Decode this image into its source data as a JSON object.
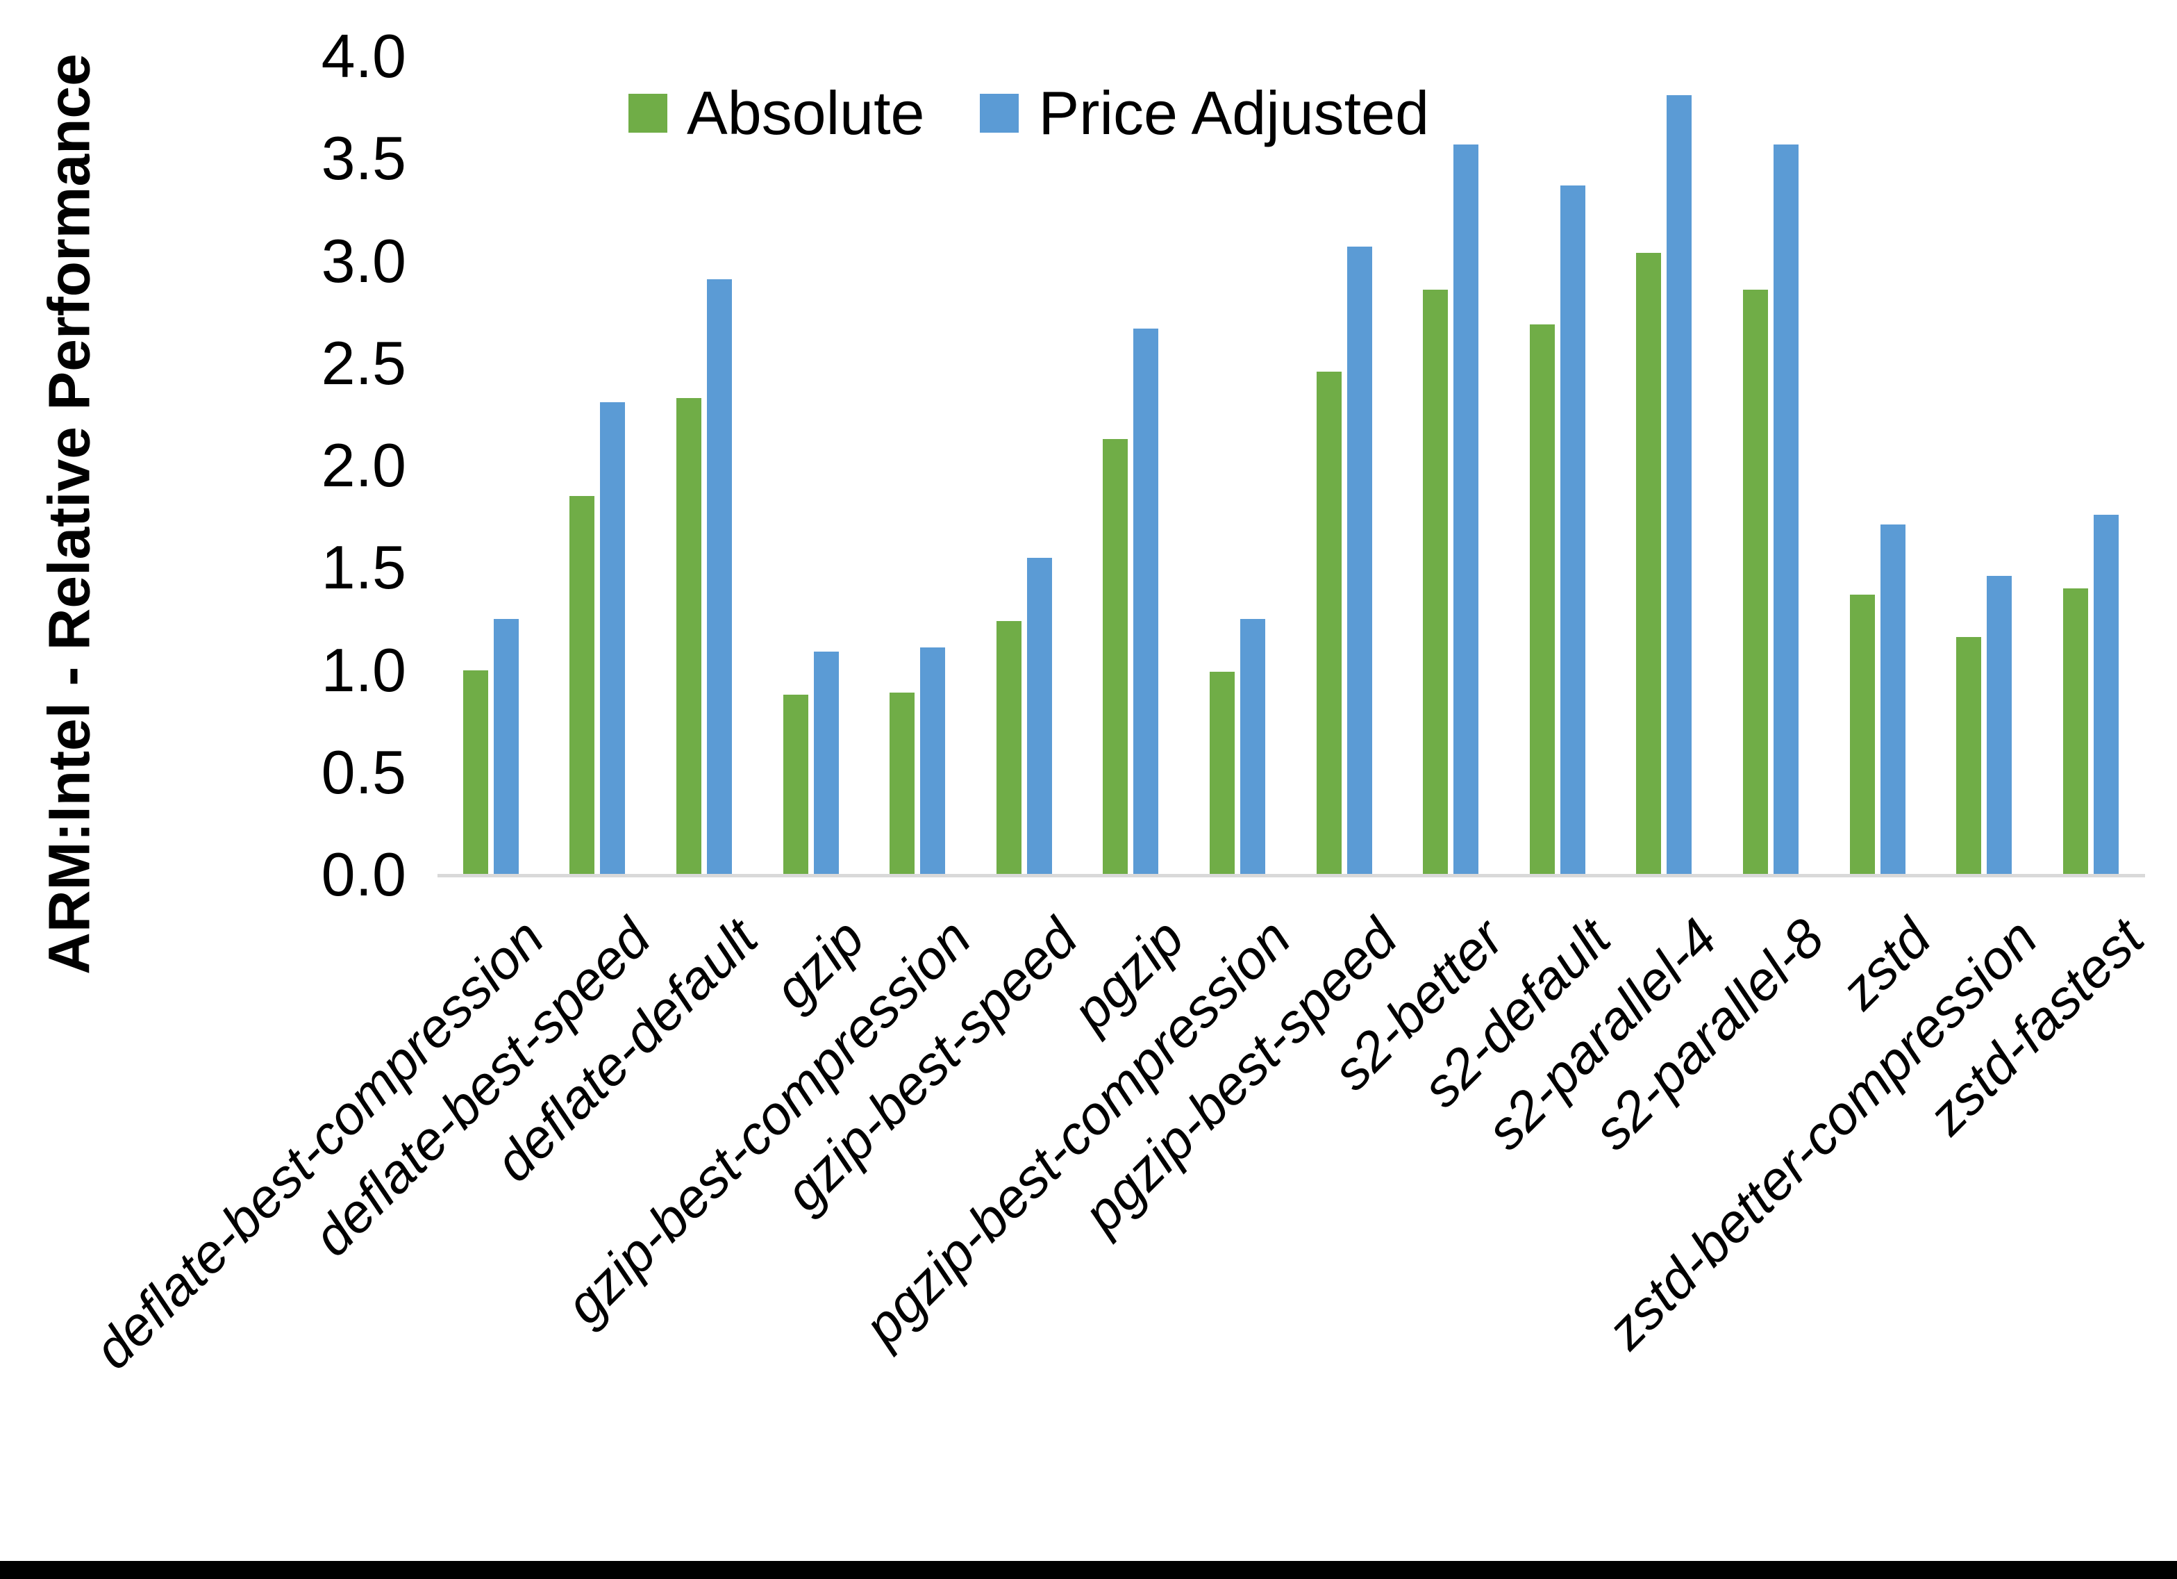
{
  "chart_data": {
    "type": "bar",
    "title": "",
    "ylabel": "ARM:Intel - Relative Performance",
    "xlabel": "",
    "ylim": [
      0.0,
      4.0
    ],
    "ytick_step": 0.5,
    "ytick_labels": [
      "0.0",
      "0.5",
      "1.0",
      "1.5",
      "2.0",
      "2.5",
      "3.0",
      "3.5",
      "4.0"
    ],
    "grid": false,
    "legend_position": "top-center",
    "categories": [
      "deflate-best-compression",
      "deflate-best-speed",
      "deflate-default",
      "gzip",
      "gzip-best-compression",
      "gzip-best-speed",
      "pgzip",
      "pgzip-best-compression",
      "pgzip-best-speed",
      "s2-better",
      "s2-default",
      "s2-parallel-4",
      "s2-parallel-8",
      "zstd",
      "zstd-better-compression",
      "zstd-fastest"
    ],
    "series": [
      {
        "name": "Absolute",
        "color": "#70AD47",
        "values": [
          1.0,
          1.85,
          2.33,
          0.88,
          0.89,
          1.24,
          2.13,
          0.99,
          2.46,
          2.86,
          2.69,
          3.04,
          2.86,
          1.37,
          1.16,
          1.4
        ]
      },
      {
        "name": "Price Adjusted",
        "color": "#5B9BD5",
        "values": [
          1.25,
          2.31,
          2.91,
          1.09,
          1.11,
          1.55,
          2.67,
          1.25,
          3.07,
          3.57,
          3.37,
          3.81,
          3.57,
          1.71,
          1.46,
          1.76
        ]
      }
    ],
    "axis_line_color": "#D9D9D9",
    "text_color": "#000000",
    "background": "#FFFFFF"
  }
}
